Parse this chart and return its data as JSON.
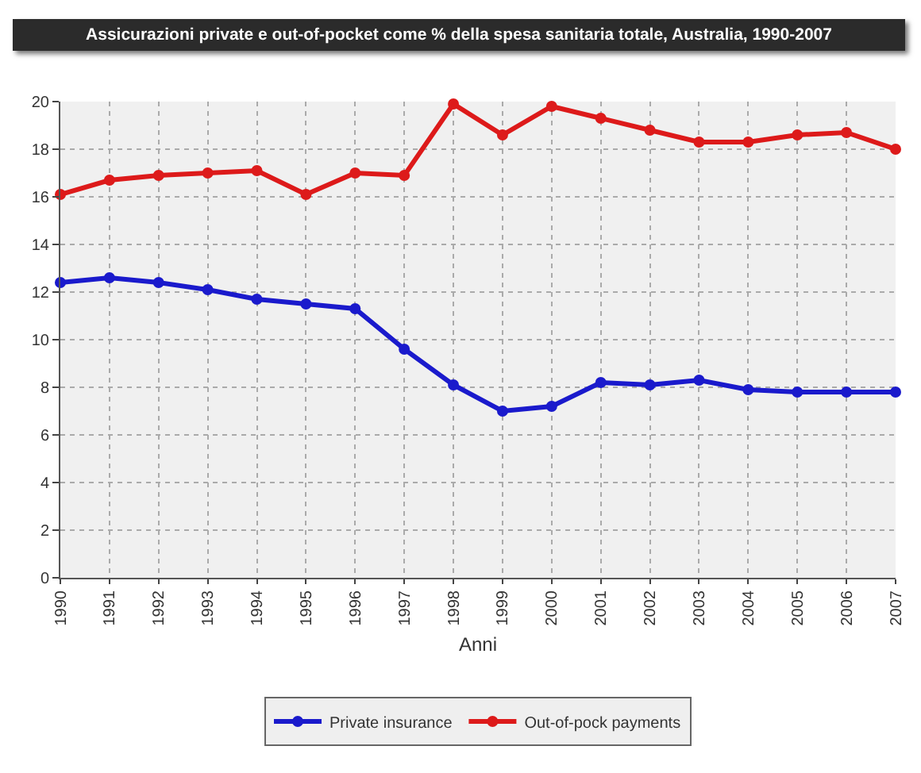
{
  "chart_data": {
    "type": "line",
    "title": "Assicurazioni private e out-of-pocket come % della spesa sanitaria totale, Australia, 1990-2007",
    "xlabel": "Anni",
    "categories": [
      "1990",
      "1991",
      "1992",
      "1993",
      "1994",
      "1995",
      "1996",
      "1997",
      "1998",
      "1999",
      "2000",
      "2001",
      "2002",
      "2003",
      "2004",
      "2005",
      "2006",
      "2007"
    ],
    "series": [
      {
        "name": "Private insurance",
        "color": "#1a1acc",
        "values": [
          12.4,
          12.6,
          12.4,
          12.1,
          11.7,
          11.5,
          11.3,
          9.6,
          8.1,
          7.0,
          7.2,
          8.2,
          8.1,
          8.3,
          7.9,
          7.8,
          7.8,
          7.8
        ]
      },
      {
        "name": "Out-of-pock payments",
        "color": "#dd1a1a",
        "values": [
          16.1,
          16.7,
          16.9,
          17.0,
          17.1,
          16.1,
          17.0,
          16.9,
          19.9,
          18.6,
          19.8,
          19.3,
          18.8,
          18.3,
          18.3,
          18.6,
          18.7,
          18.0
        ]
      }
    ],
    "ylim": [
      0,
      20
    ],
    "yticks": [
      0,
      2,
      4,
      6,
      8,
      10,
      12,
      14,
      16,
      18,
      20
    ],
    "grid": true,
    "legend": "bottom",
    "marker": "circle",
    "line_style": "solid"
  }
}
